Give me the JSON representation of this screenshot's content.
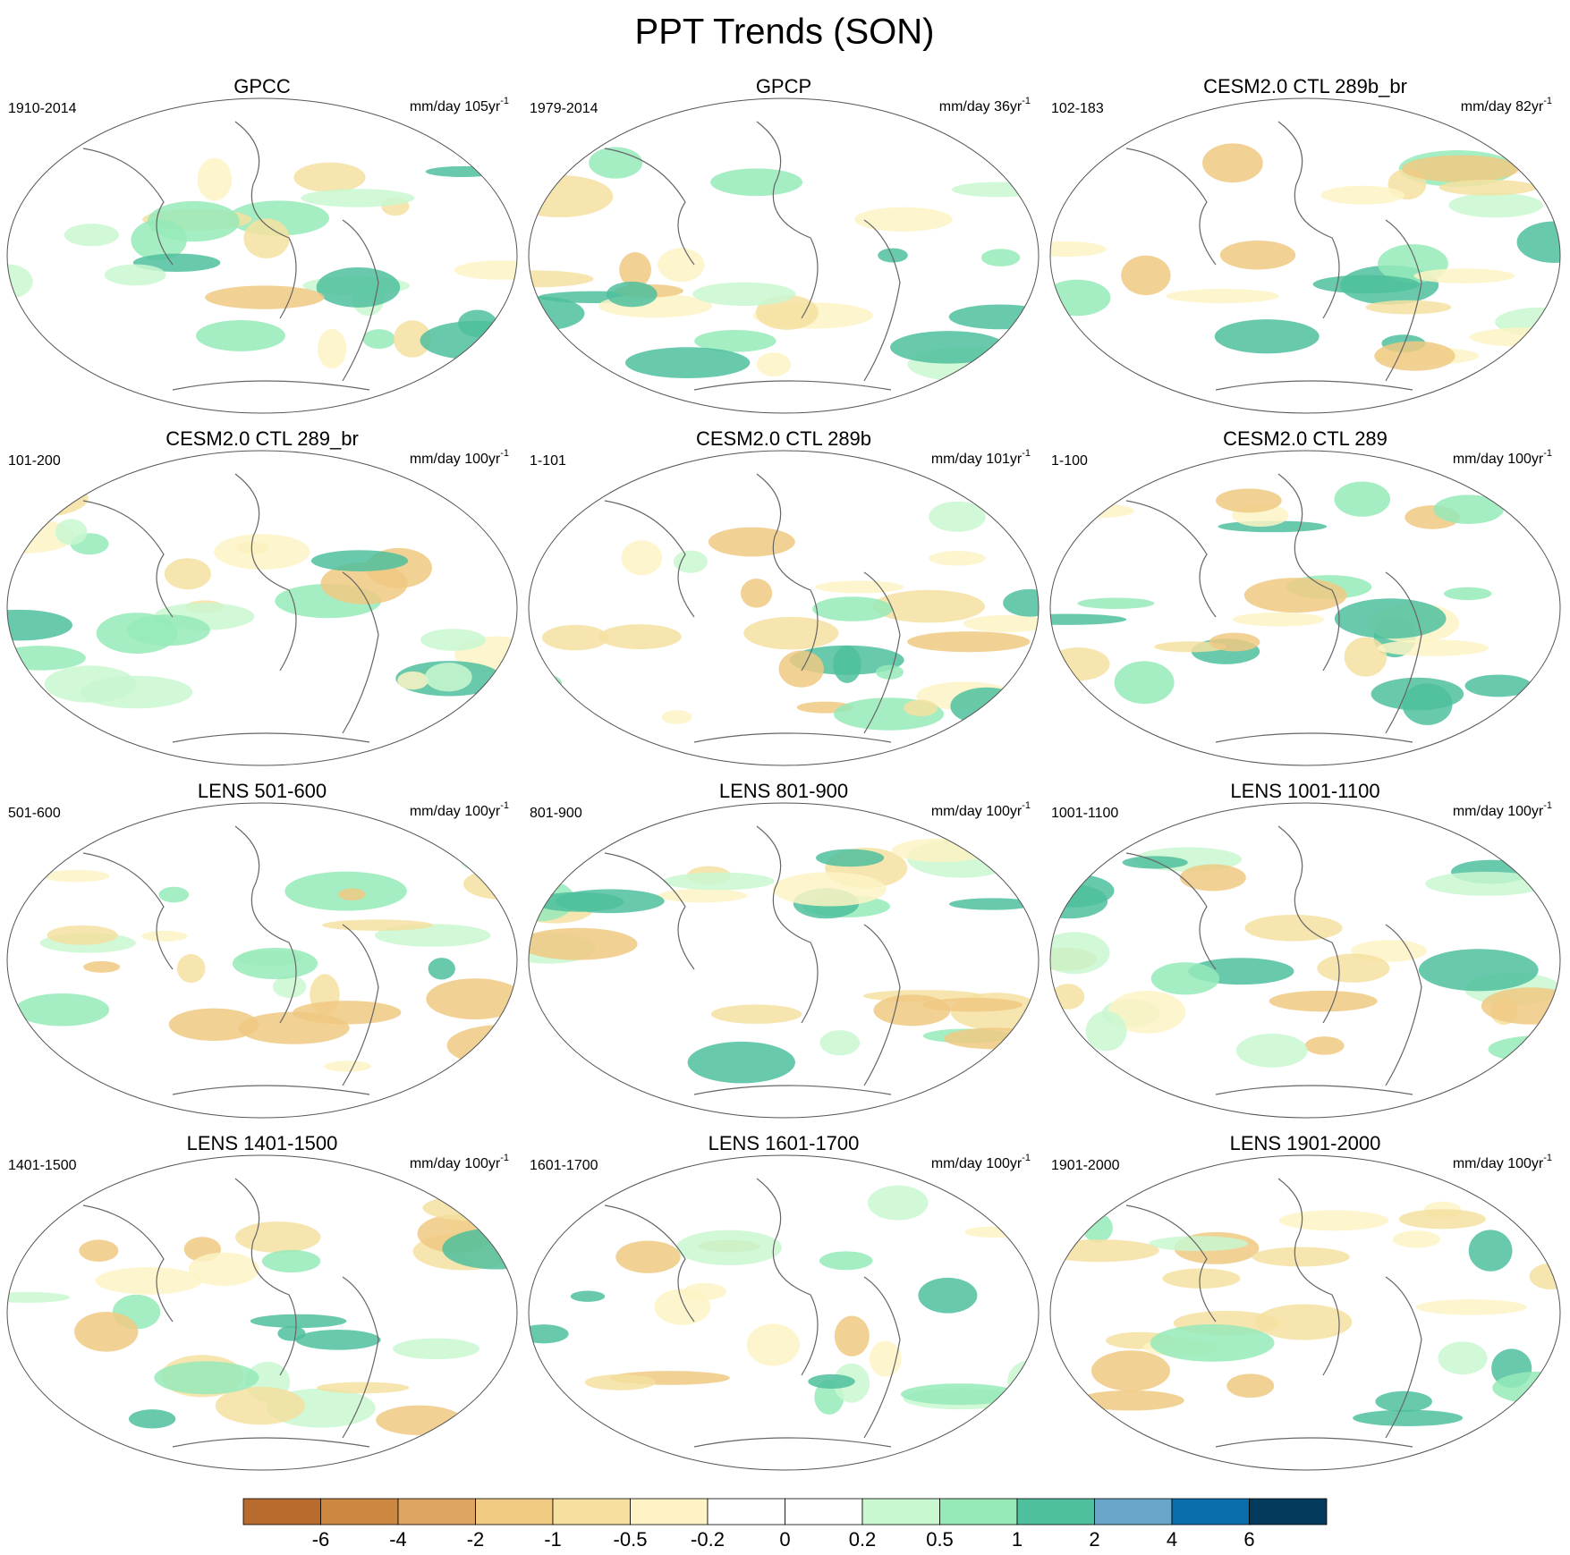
{
  "title": "PPT Trends (SON)",
  "panels": [
    {
      "title": "GPCC",
      "period": "1910-2014",
      "units": "mm/day 105yr",
      "units_exp": "-1"
    },
    {
      "title": "GPCP",
      "period": "1979-2014",
      "units": "mm/day 36yr",
      "units_exp": "-1"
    },
    {
      "title": "CESM2.0 CTL 289b_br",
      "period": "102-183",
      "units": "mm/day 82yr",
      "units_exp": "-1"
    },
    {
      "title": "CESM2.0 CTL 289_br",
      "period": "101-200",
      "units": "mm/day 100yr",
      "units_exp": "-1"
    },
    {
      "title": "CESM2.0 CTL 289b",
      "period": "1-101",
      "units": "mm/day 101yr",
      "units_exp": "-1"
    },
    {
      "title": "CESM2.0 CTL 289",
      "period": "1-100",
      "units": "mm/day 100yr",
      "units_exp": "-1"
    },
    {
      "title": "LENS 501-600",
      "period": "501-600",
      "units": "mm/day 100yr",
      "units_exp": "-1"
    },
    {
      "title": "LENS 801-900",
      "period": "801-900",
      "units": "mm/day 100yr",
      "units_exp": "-1"
    },
    {
      "title": "LENS 1001-1100",
      "period": "1001-1100",
      "units": "mm/day 100yr",
      "units_exp": "-1"
    },
    {
      "title": "LENS 1401-1500",
      "period": "1401-1500",
      "units": "mm/day 100yr",
      "units_exp": "-1"
    },
    {
      "title": "LENS 1601-1700",
      "period": "1601-1700",
      "units": "mm/day 100yr",
      "units_exp": "-1"
    },
    {
      "title": "LENS 1901-2000",
      "period": "1901-2000",
      "units": "mm/day 100yr",
      "units_exp": "-1"
    }
  ],
  "colorbar": {
    "colors": [
      "#b86b2d",
      "#cd8740",
      "#dea462",
      "#f0c983",
      "#f5e0a0",
      "#fdf3c4",
      "#ffffff",
      "#ffffff",
      "#c9f7d0",
      "#95eab8",
      "#4fbf9d",
      "#6aa6c8",
      "#0a6ead",
      "#033a5c"
    ],
    "levels": [
      -6,
      -4,
      -2,
      -1,
      -0.5,
      -0.2,
      0,
      0.2,
      0.5,
      1,
      2,
      4,
      6
    ]
  }
}
